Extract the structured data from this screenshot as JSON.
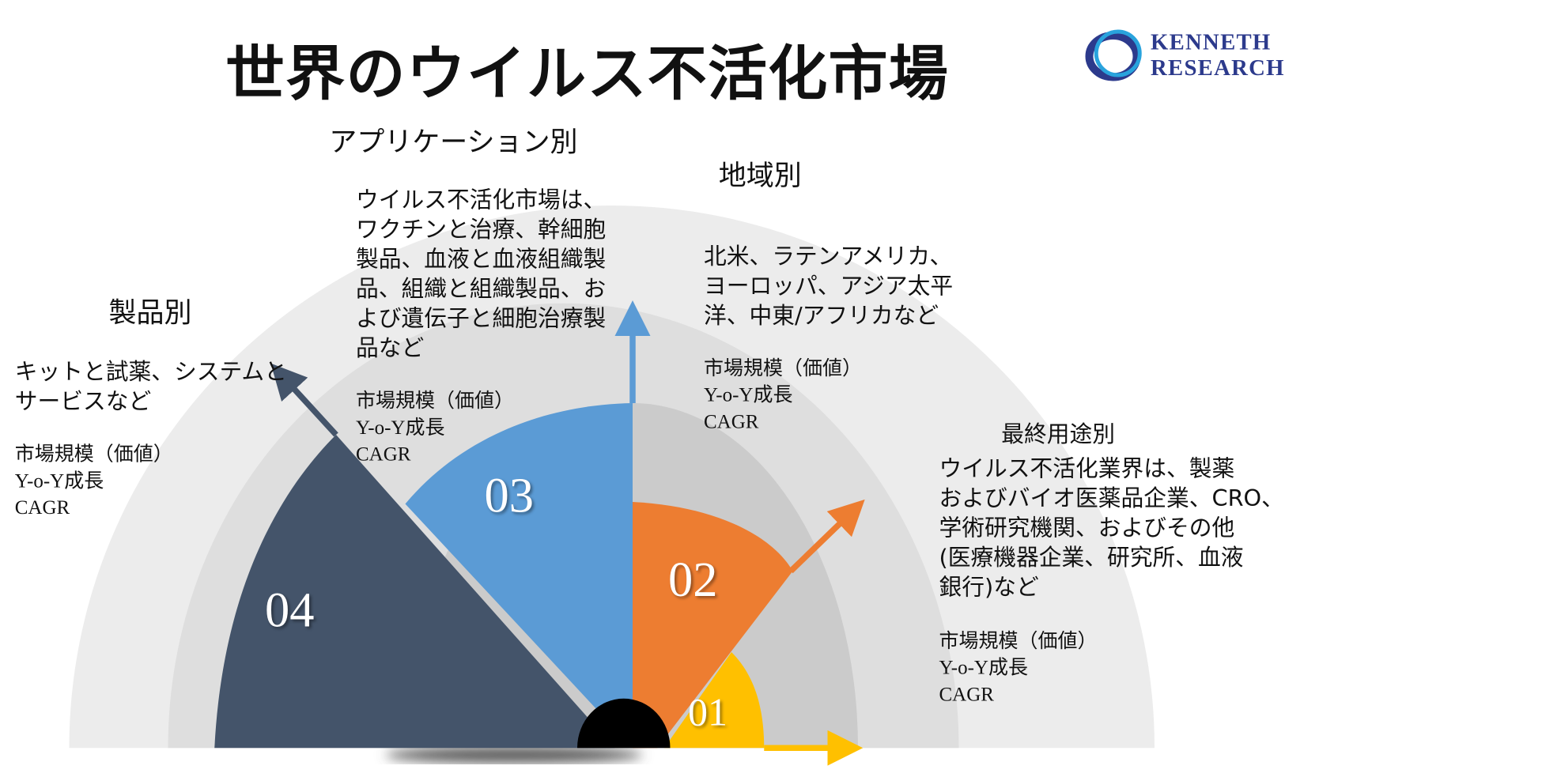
{
  "title": "世界のウイルス不活化市場",
  "logo": {
    "line1": "KENNETH",
    "line2": "RESEARCH"
  },
  "segments": [
    {
      "number": "01",
      "heading": "最終用途別",
      "color": "#ffc000",
      "description": [
        "ウイルス不活化業界は、製薬",
        "およびバイオ医薬品企業、CRO、",
        "学術研究機関、およびその他",
        "(医療機器企業、研究所、血液",
        "銀行)など"
      ],
      "stats": [
        "市場規模（価値）",
        "Y-o-Y成長",
        "CAGR"
      ]
    },
    {
      "number": "02",
      "heading": "地域別",
      "color": "#ed7d31",
      "description": [
        "北米、ラテンアメリカ、",
        "ヨーロッパ、アジア太平",
        "洋、中東/アフリカなど"
      ],
      "stats": [
        "市場規模（価値）",
        "Y-o-Y成長",
        "CAGR"
      ]
    },
    {
      "number": "03",
      "heading": "アプリケーション別",
      "color": "#5b9bd5",
      "description": [
        "ウイルス不活化市場は、",
        "ワクチンと治療、幹細胞",
        "製品、血液と血液組織製",
        "品、組織と組織製品、お",
        "よび遺伝子と細胞治療製",
        "品など"
      ],
      "stats": [
        "市場規模（価値）",
        "Y-o-Y成長",
        "CAGR"
      ]
    },
    {
      "number": "04",
      "heading": "製品別",
      "color": "#44546a",
      "description": [
        "キットと試薬、システムと",
        "サービスなど"
      ],
      "stats": [
        "市場規模（価値）",
        "Y-o-Y成長",
        "CAGR"
      ]
    }
  ]
}
